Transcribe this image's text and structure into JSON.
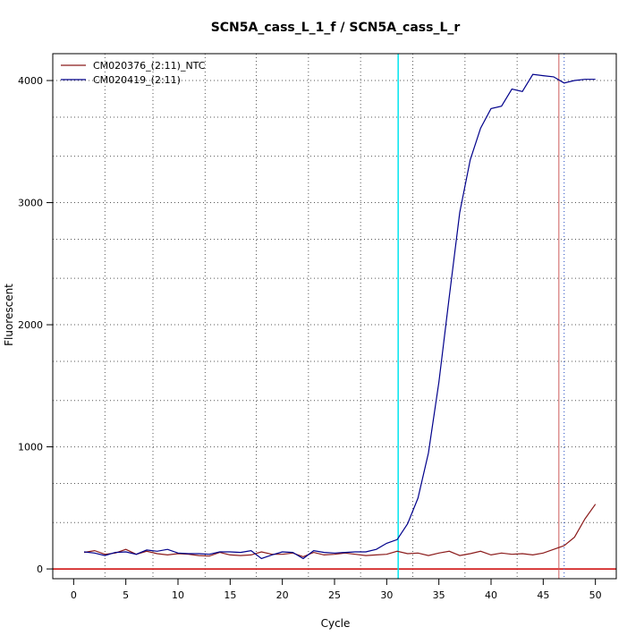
{
  "chart_data": {
    "type": "line",
    "title": "SCN5A_cass_L_1_f / SCN5A_cass_L_r",
    "xlabel": "Cycle",
    "ylabel": "Fluorescent",
    "xlim": [
      -2,
      52
    ],
    "ylim": [
      -80,
      4220
    ],
    "xticks": [
      0,
      5,
      10,
      15,
      20,
      25,
      30,
      35,
      40,
      45,
      50
    ],
    "yticks": [
      0,
      1000,
      2000,
      3000,
      4000
    ],
    "grid": true,
    "grid_x": [
      3,
      7.6,
      12.6,
      17.5,
      22.5,
      27.5,
      32.5,
      37.5,
      42.5,
      47
    ],
    "grid_y": [
      -80,
      380,
      700,
      1000,
      1380,
      1700,
      2000,
      2380,
      2700,
      3000,
      3380,
      3700,
      4000
    ],
    "legend_position": "top-left",
    "colors": {
      "ntc": "#8b1a1a",
      "sample": "#00008b",
      "threshold": "#cc0000",
      "ct_line": "#00e5ee",
      "cycle_marker": "#cd5c5c",
      "cycle_marker_dotted": "#4169e1"
    },
    "baseline_threshold": 0,
    "ct_cycle": 31.1,
    "vertical_markers": [
      {
        "x": 46.5,
        "style": "solid"
      },
      {
        "x": 47.0,
        "style": "dotted"
      }
    ],
    "series": [
      {
        "name": "CM020376_(2:11)_NTC",
        "color": "#8b1a1a",
        "x": [
          1,
          2,
          3,
          4,
          5,
          6,
          7,
          8,
          9,
          10,
          11,
          12,
          13,
          14,
          15,
          16,
          17,
          18,
          19,
          20,
          21,
          22,
          23,
          24,
          25,
          26,
          27,
          28,
          29,
          30,
          31,
          32,
          33,
          34,
          35,
          36,
          37,
          38,
          39,
          40,
          41,
          42,
          43,
          44,
          45,
          46,
          47,
          48,
          49,
          50
        ],
        "y": [
          135,
          150,
          120,
          130,
          160,
          120,
          145,
          125,
          115,
          125,
          120,
          110,
          105,
          135,
          115,
          110,
          115,
          140,
          120,
          120,
          130,
          100,
          135,
          115,
          120,
          130,
          120,
          110,
          115,
          120,
          145,
          125,
          130,
          110,
          130,
          145,
          110,
          125,
          145,
          115,
          130,
          120,
          125,
          115,
          130,
          160,
          190,
          260,
          410,
          530
        ]
      },
      {
        "name": "CM020419_(2:11)",
        "color": "#00008b",
        "x": [
          1,
          2,
          3,
          4,
          5,
          6,
          7,
          8,
          9,
          10,
          11,
          12,
          13,
          14,
          15,
          16,
          17,
          18,
          19,
          20,
          21,
          22,
          23,
          24,
          25,
          26,
          27,
          28,
          29,
          30,
          31,
          32,
          33,
          34,
          35,
          36,
          37,
          38,
          39,
          40,
          41,
          42,
          43,
          44,
          45,
          46,
          47,
          48,
          49,
          50
        ],
        "y": [
          140,
          130,
          110,
          135,
          140,
          120,
          155,
          145,
          160,
          130,
          125,
          125,
          120,
          140,
          140,
          135,
          150,
          85,
          115,
          140,
          135,
          85,
          150,
          135,
          130,
          135,
          140,
          140,
          160,
          210,
          240,
          370,
          580,
          950,
          1530,
          2230,
          2920,
          3350,
          3610,
          3770,
          3790,
          3930,
          3910,
          4050,
          4040,
          4030,
          3980,
          4000,
          4010,
          4010
        ]
      }
    ]
  }
}
